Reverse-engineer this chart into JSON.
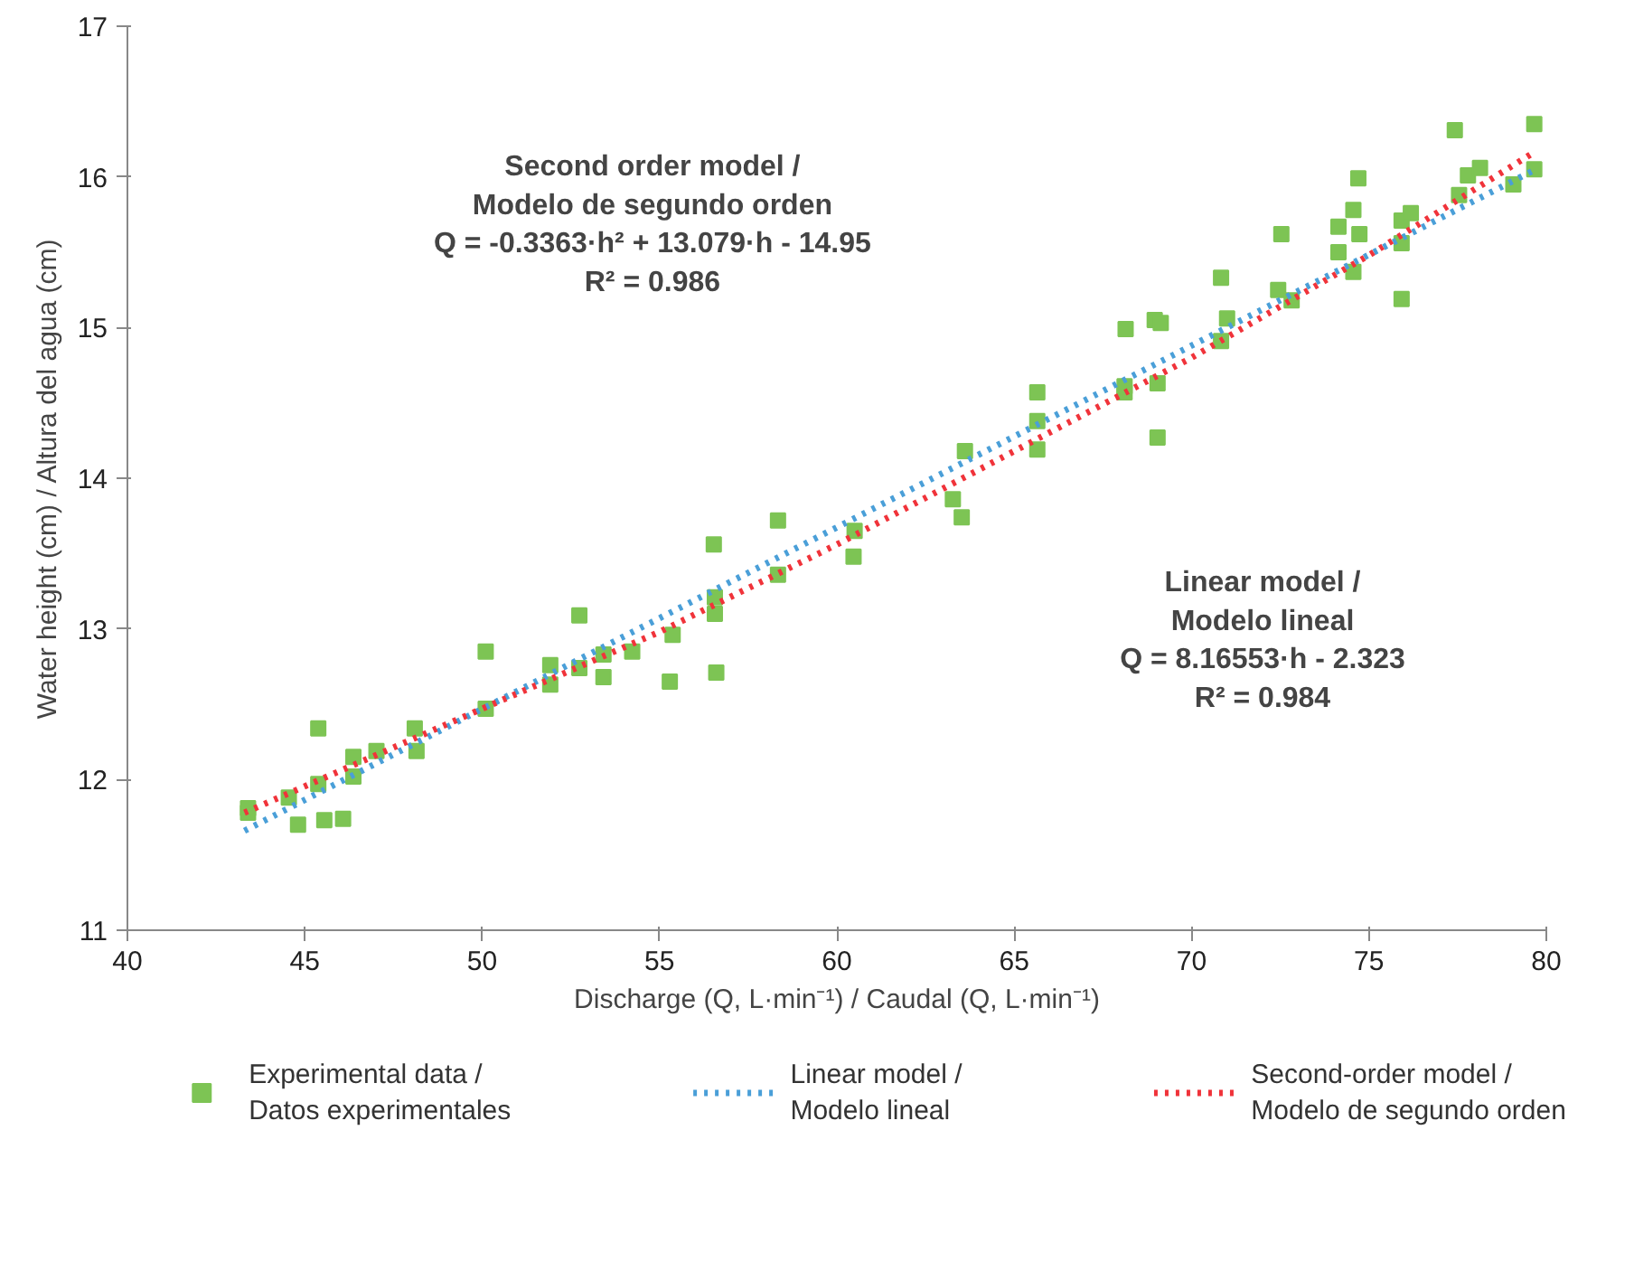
{
  "chart_data": {
    "type": "scatter",
    "xlabel": "Discharge (Q, L·min⁻¹) / Caudal (Q, L·min⁻¹)",
    "ylabel": "Water height (cm) / Altura del agua (cm)",
    "xlim": [
      40,
      80
    ],
    "ylim": [
      11,
      17
    ],
    "xticks": [
      40,
      45,
      50,
      55,
      60,
      65,
      70,
      75,
      80
    ],
    "yticks": [
      11,
      12,
      13,
      14,
      15,
      16,
      17
    ],
    "grid": false,
    "legend": "bottom",
    "annotations": [
      "Second order model /\nModelo de segundo orden\nQ = -0.3363·h² + 13.079·h - 14.95\nR² = 0.986",
      "Linear model /\nModelo lineal\nQ = 8.16553·h - 2.323\nR² = 0.984"
    ],
    "series": [
      {
        "name": "Experimental data /\nDatos experimentales",
        "marker": "square",
        "color": "#7dc454",
        "x": [
          43.4,
          43.4,
          44.55,
          44.81,
          45.38,
          45.55,
          46.08,
          45.38,
          46.37,
          46.37,
          47.02,
          48.1,
          48.15,
          50.1,
          50.1,
          51.92,
          51.92,
          52.74,
          52.74,
          53.42,
          53.42,
          54.23,
          55.37,
          55.29,
          56.53,
          56.56,
          56.56,
          56.6,
          58.34,
          58.34,
          60.47,
          60.5,
          63.27,
          63.52,
          63.61,
          65.65,
          65.65,
          65.65,
          68.11,
          68.11,
          68.14,
          69.04,
          68.96,
          69.13,
          69.04,
          70.83,
          70.83,
          71.0,
          72.44,
          72.53,
          72.82,
          74.14,
          74.14,
          74.56,
          74.7,
          74.56,
          74.73,
          75.92,
          75.92,
          75.92,
          76.18,
          77.42,
          77.54,
          77.79,
          78.13,
          79.07,
          79.66,
          79.66
        ],
        "values": [
          11.81,
          11.78,
          11.88,
          11.7,
          12.34,
          11.73,
          11.74,
          11.97,
          12.15,
          12.02,
          12.19,
          12.34,
          12.19,
          12.85,
          12.47,
          12.76,
          12.63,
          13.09,
          12.74,
          12.83,
          12.68,
          12.85,
          12.96,
          12.65,
          13.56,
          13.21,
          13.1,
          12.71,
          13.72,
          13.36,
          13.48,
          13.65,
          13.86,
          13.74,
          14.18,
          14.57,
          14.38,
          14.19,
          14.61,
          14.57,
          14.99,
          14.63,
          15.05,
          15.03,
          14.27,
          14.91,
          15.33,
          15.06,
          15.25,
          15.62,
          15.18,
          15.5,
          15.67,
          15.78,
          15.99,
          15.37,
          15.62,
          15.19,
          15.71,
          15.56,
          15.76,
          16.31,
          15.88,
          16.01,
          16.06,
          15.95,
          16.35,
          16.05
        ]
      },
      {
        "name": "Linear model /\nModelo lineal",
        "type": "line",
        "line_style": "dotted",
        "color": "#4a9fd8",
        "x": [
          43.3,
          79.7
        ],
        "values": [
          11.66,
          16.05
        ]
      },
      {
        "name": "Second-order model /\nModelo de segundo orden",
        "type": "line",
        "line_style": "dotted",
        "color": "#f0333a",
        "x": [
          43.3,
          50,
          55,
          60,
          65,
          70,
          75,
          79.7
        ],
        "values": [
          11.78,
          12.47,
          12.98,
          13.56,
          14.18,
          14.8,
          15.48,
          16.17
        ]
      }
    ]
  }
}
